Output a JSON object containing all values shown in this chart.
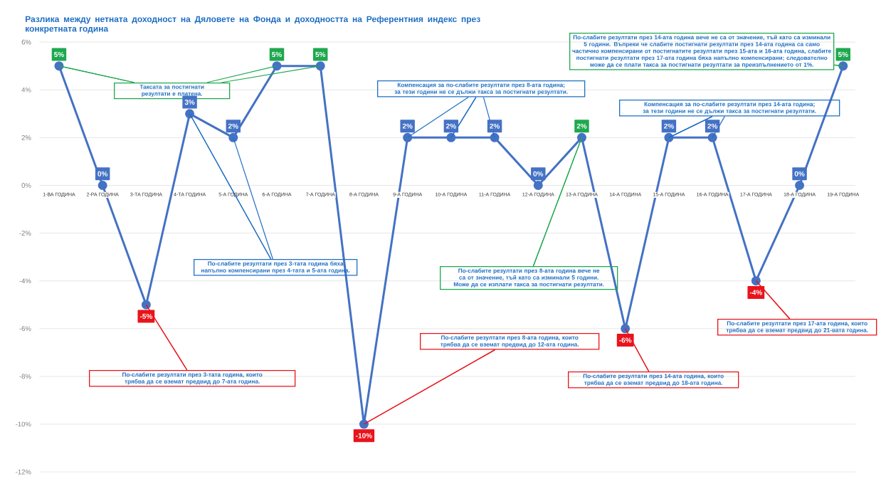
{
  "chart_data": {
    "type": "line",
    "title": "Разлика между нетната доходност на Дяловете на Фонда и доходността на Референтния индекс през конкретната година",
    "categories": [
      "1-ВА ГОДИНА",
      "2-РА ГОДИНА",
      "3-ТА ГОДИНА",
      "4-ТА ГОДИНА",
      "5-А ГОДИНА",
      "6-А ГОДИНА",
      "7-А ГОДИНА",
      "8-А ГОДИНА",
      "9-А ГОДИНА",
      "10-А ГОДИНА",
      "11-А ГОДИНА",
      "12-А ГОДИНА",
      "13-А ГОДИНА",
      "14-А ГОДИНА",
      "15-А ГОДИНА",
      "16-А ГОДИНА",
      "17-А ГОДИНА",
      "18-А ГОДИНА",
      "19-А ГОДИНА"
    ],
    "values": [
      5,
      0,
      -5,
      3,
      2,
      5,
      5,
      -10,
      2,
      2,
      2,
      0,
      2,
      -6,
      2,
      2,
      -4,
      0,
      5
    ],
    "value_labels": [
      "5%",
      "0%",
      "-5%",
      "3%",
      "2%",
      "5%",
      "5%",
      "-10%",
      "2%",
      "2%",
      "2%",
      "0%",
      "2%",
      "-6%",
      "2%",
      "2%",
      "-4%",
      "0%",
      "5%"
    ],
    "color": "#4472c4",
    "colors": [
      "#1fa84f",
      "#4472c4",
      "#e8141c",
      "#4472c4",
      "#4472c4",
      "#1fa84f",
      "#1fa84f",
      "#e8141c",
      "#4472c4",
      "#4472c4",
      "#4472c4",
      "#4472c4",
      "#1fa84f",
      "#e8141c",
      "#4472c4",
      "#4472c4",
      "#e8141c",
      "#4472c4",
      "#1fa84f"
    ],
    "marker": "circle",
    "line_style": "solid",
    "ylim": [
      -12,
      6
    ],
    "yticks": [
      {
        "value": -12,
        "label": "-12%"
      },
      {
        "value": -10,
        "label": "-10%"
      },
      {
        "value": -8,
        "label": "-8%"
      },
      {
        "value": -6,
        "label": "-6%"
      },
      {
        "value": -4,
        "label": "-4%"
      },
      {
        "value": -2,
        "label": "-2%"
      },
      {
        "value": 0,
        "label": "0%"
      },
      {
        "value": 2,
        "label": "2%"
      },
      {
        "value": 4,
        "label": "4%"
      },
      {
        "value": 6,
        "label": "6%"
      }
    ],
    "grid": "y",
    "annotations": [
      {
        "text": "Таксата за постигнати резултати е платена.",
        "x": "1-ВА ГОДИНА",
        "y": 5
      },
      {
        "text": "Компенсация за по-слабите резултати през 8-ата година; за тези години не се дължи такса за постигнати резултати.",
        "x": "10-А ГОДИНА",
        "y": 2
      },
      {
        "text": "По-слабите резултати през 14-ата година вече не са от значение, тъй като са изминали 5 години. Въпреки че слабите постигнати резултати през 14-ата година са само частично компенсирани от постигнатите резултати през 15-ата и 16-ата година, слабите постигнати резултати през 17-ата година бяха напълно компенсирани; следователно може да се плати такса за постигнати резултати за преизпълнението от 1%.",
        "x": "19-А ГОДИНА",
        "y": 5
      },
      {
        "text": "Компенсация за по-слабите резултати през 14-ата година; за тези години не се дължи такса за постигнати резултати.",
        "x": "15-А ГОДИНА",
        "y": 2
      },
      {
        "text": "По-слабите резултати през 3-тата година бяха напълно компенсирани през 4-тата и 5-ата година.",
        "x": "4-ТА ГОДИНА",
        "y": 3
      },
      {
        "text": "По-слабите резултати през 8-ата година вече не са от значение, тъй като са изминали 5 години. Може да се изплати такса за постигнати резултати.",
        "x": "13-А ГОДИНА",
        "y": 2
      },
      {
        "text": "По-слабите резултати през 3-тата година, които трябва да се вземат предвид до 7-ата година.",
        "x": "3-ТА ГОДИНА",
        "y": -5
      },
      {
        "text": "По-слабите резултати през 8-ата година, които трябва да се вземат предвид до 12-ата година.",
        "x": "8-А ГОДИНА",
        "y": -10
      },
      {
        "text": "По-слабите резултати през 14-ата година, които трябва да се вземат предвид до 18-ата година.",
        "x": "14-А ГОДИНА",
        "y": -6
      },
      {
        "text": "По-слабите резултати през 17-ата година, които трябва да се вземат предвид до 21-вата година.",
        "x": "17-А ГОДИНА",
        "y": -4
      }
    ],
    "data_labels": true
  }
}
